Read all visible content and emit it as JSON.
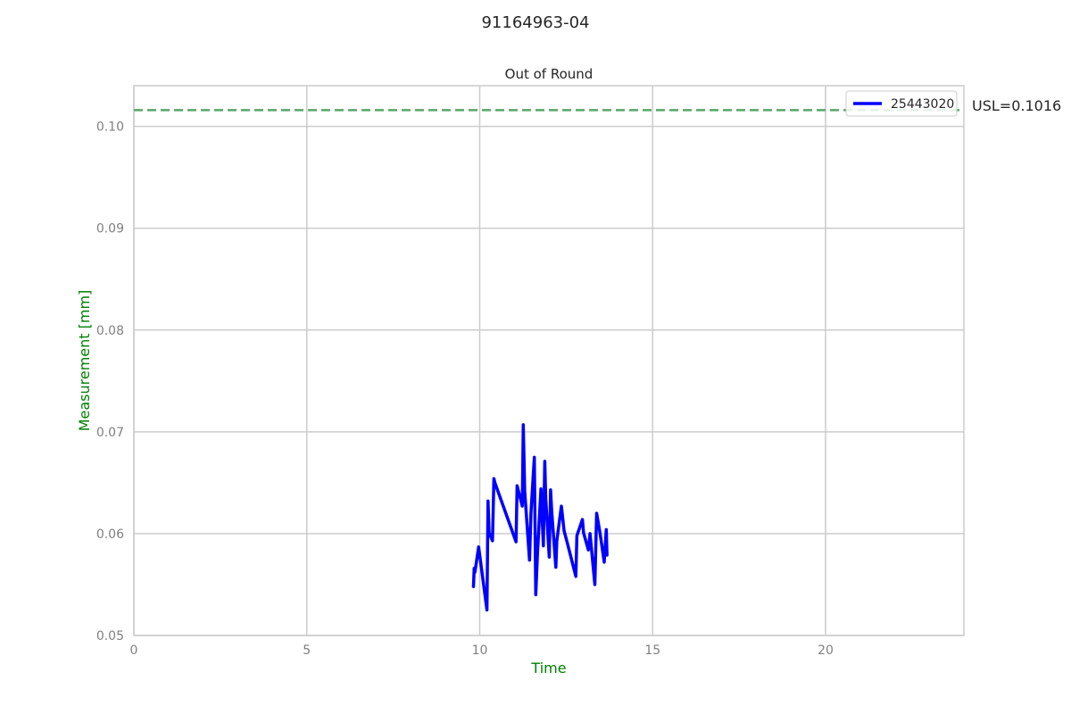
{
  "figure_title": "91164963-04",
  "chart_data": {
    "type": "line",
    "title": "Out of Round",
    "xlabel": "Time",
    "ylabel": "Measurement [mm]",
    "xlim": [
      0,
      24
    ],
    "ylim": [
      0.05,
      0.104
    ],
    "xticks": [
      0,
      5,
      10,
      15,
      20
    ],
    "xtick_labels": [
      "0",
      "5",
      "10",
      "15",
      "20"
    ],
    "yticks": [
      0.05,
      0.06,
      0.07,
      0.08,
      0.09,
      0.1
    ],
    "ytick_labels": [
      "0.05",
      "0.06",
      "0.07",
      "0.08",
      "0.09",
      "0.10"
    ],
    "grid": true,
    "legend_position": "upper right",
    "series": [
      {
        "name": "25443020",
        "color": "#0000ff",
        "x": [
          9.82,
          9.84,
          9.86,
          9.97,
          10.21,
          10.24,
          10.27,
          10.37,
          10.41,
          10.44,
          11.05,
          11.08,
          11.23,
          11.26,
          11.3,
          11.44,
          11.48,
          11.58,
          11.62,
          11.67,
          11.77,
          11.84,
          11.88,
          11.91,
          12.01,
          12.05,
          12.08,
          12.2,
          12.23,
          12.36,
          12.44,
          12.54,
          12.78,
          12.81,
          12.97,
          13.0,
          13.14,
          13.19,
          13.33,
          13.38,
          13.48,
          13.6,
          13.66,
          13.68
        ],
        "y": [
          0.0548,
          0.0566,
          0.0562,
          0.0587,
          0.0525,
          0.0632,
          0.0601,
          0.0593,
          0.0654,
          0.065,
          0.0592,
          0.0647,
          0.0627,
          0.0707,
          0.0642,
          0.0574,
          0.062,
          0.0675,
          0.054,
          0.058,
          0.0644,
          0.0588,
          0.0671,
          0.0634,
          0.0577,
          0.0643,
          0.0623,
          0.0567,
          0.0593,
          0.0627,
          0.0603,
          0.059,
          0.0558,
          0.0598,
          0.0614,
          0.0601,
          0.0584,
          0.06,
          0.055,
          0.062,
          0.06,
          0.0572,
          0.0604,
          0.0579
        ]
      }
    ],
    "reference_lines": [
      {
        "label": "USL=0.1016",
        "y": 0.1016,
        "color": "#55a868",
        "style": "dashed"
      }
    ]
  }
}
